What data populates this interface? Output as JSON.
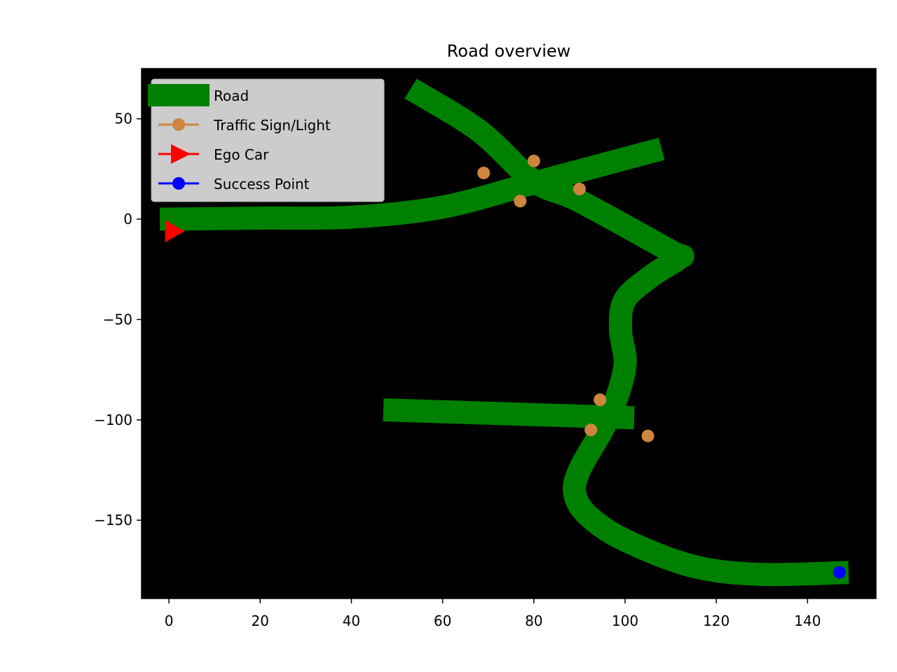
{
  "chart_data": {
    "type": "line",
    "title": "Road overview",
    "xlabel": "",
    "ylabel": "",
    "xlim": [
      -6,
      155
    ],
    "ylim": [
      -189,
      75
    ],
    "xticks": [
      0,
      20,
      40,
      60,
      80,
      100,
      120,
      140
    ],
    "yticks": [
      50,
      0,
      -50,
      -100,
      -150
    ],
    "xtick_labels": [
      "0",
      "20",
      "40",
      "60",
      "80",
      "100",
      "120",
      "140"
    ],
    "ytick_labels": [
      "50",
      "0",
      "−50",
      "−100",
      "−150"
    ],
    "background": "#000000",
    "grid": false,
    "legend_placement": "upper-left",
    "series": [
      {
        "name": "Road",
        "kind": "road",
        "color": "#008000",
        "segments": [
          [
            [
              -2,
              0
            ],
            [
              20,
              0.5
            ],
            [
              40,
              1
            ],
            [
              60,
              6
            ],
            [
              80,
              18
            ],
            [
              108,
              35
            ]
          ],
          [
            [
              53,
              65
            ],
            [
              68,
              44
            ],
            [
              80,
              19
            ],
            [
              90,
              9
            ],
            [
              110,
              -16
            ],
            [
              112,
              -19
            ],
            [
              106,
              -28
            ],
            [
              100,
              -40
            ],
            [
              99,
              -55
            ],
            [
              100,
              -72
            ],
            [
              98,
              -90
            ],
            [
              95,
              -105
            ],
            [
              90,
              -125
            ],
            [
              89,
              -137
            ],
            [
              92,
              -148
            ],
            [
              100,
              -160
            ],
            [
              115,
              -173
            ],
            [
              130,
              -177
            ],
            [
              149,
              -176
            ]
          ],
          [
            [
              47,
              -95
            ],
            [
              102,
              -99
            ]
          ]
        ]
      },
      {
        "name": "Traffic Sign/Light",
        "kind": "points",
        "color": "#cd853f",
        "points": [
          [
            69,
            23
          ],
          [
            80,
            29
          ],
          [
            77,
            9
          ],
          [
            90,
            15
          ],
          [
            94.5,
            -90
          ],
          [
            92.5,
            -105
          ],
          [
            105,
            -108
          ]
        ]
      },
      {
        "name": "Ego Car",
        "kind": "marker",
        "color": "#ff0000",
        "points": [
          [
            1,
            -6
          ]
        ]
      },
      {
        "name": "Success Point",
        "kind": "points",
        "color": "#0000ff",
        "points": [
          [
            147,
            -176
          ]
        ]
      }
    ]
  }
}
